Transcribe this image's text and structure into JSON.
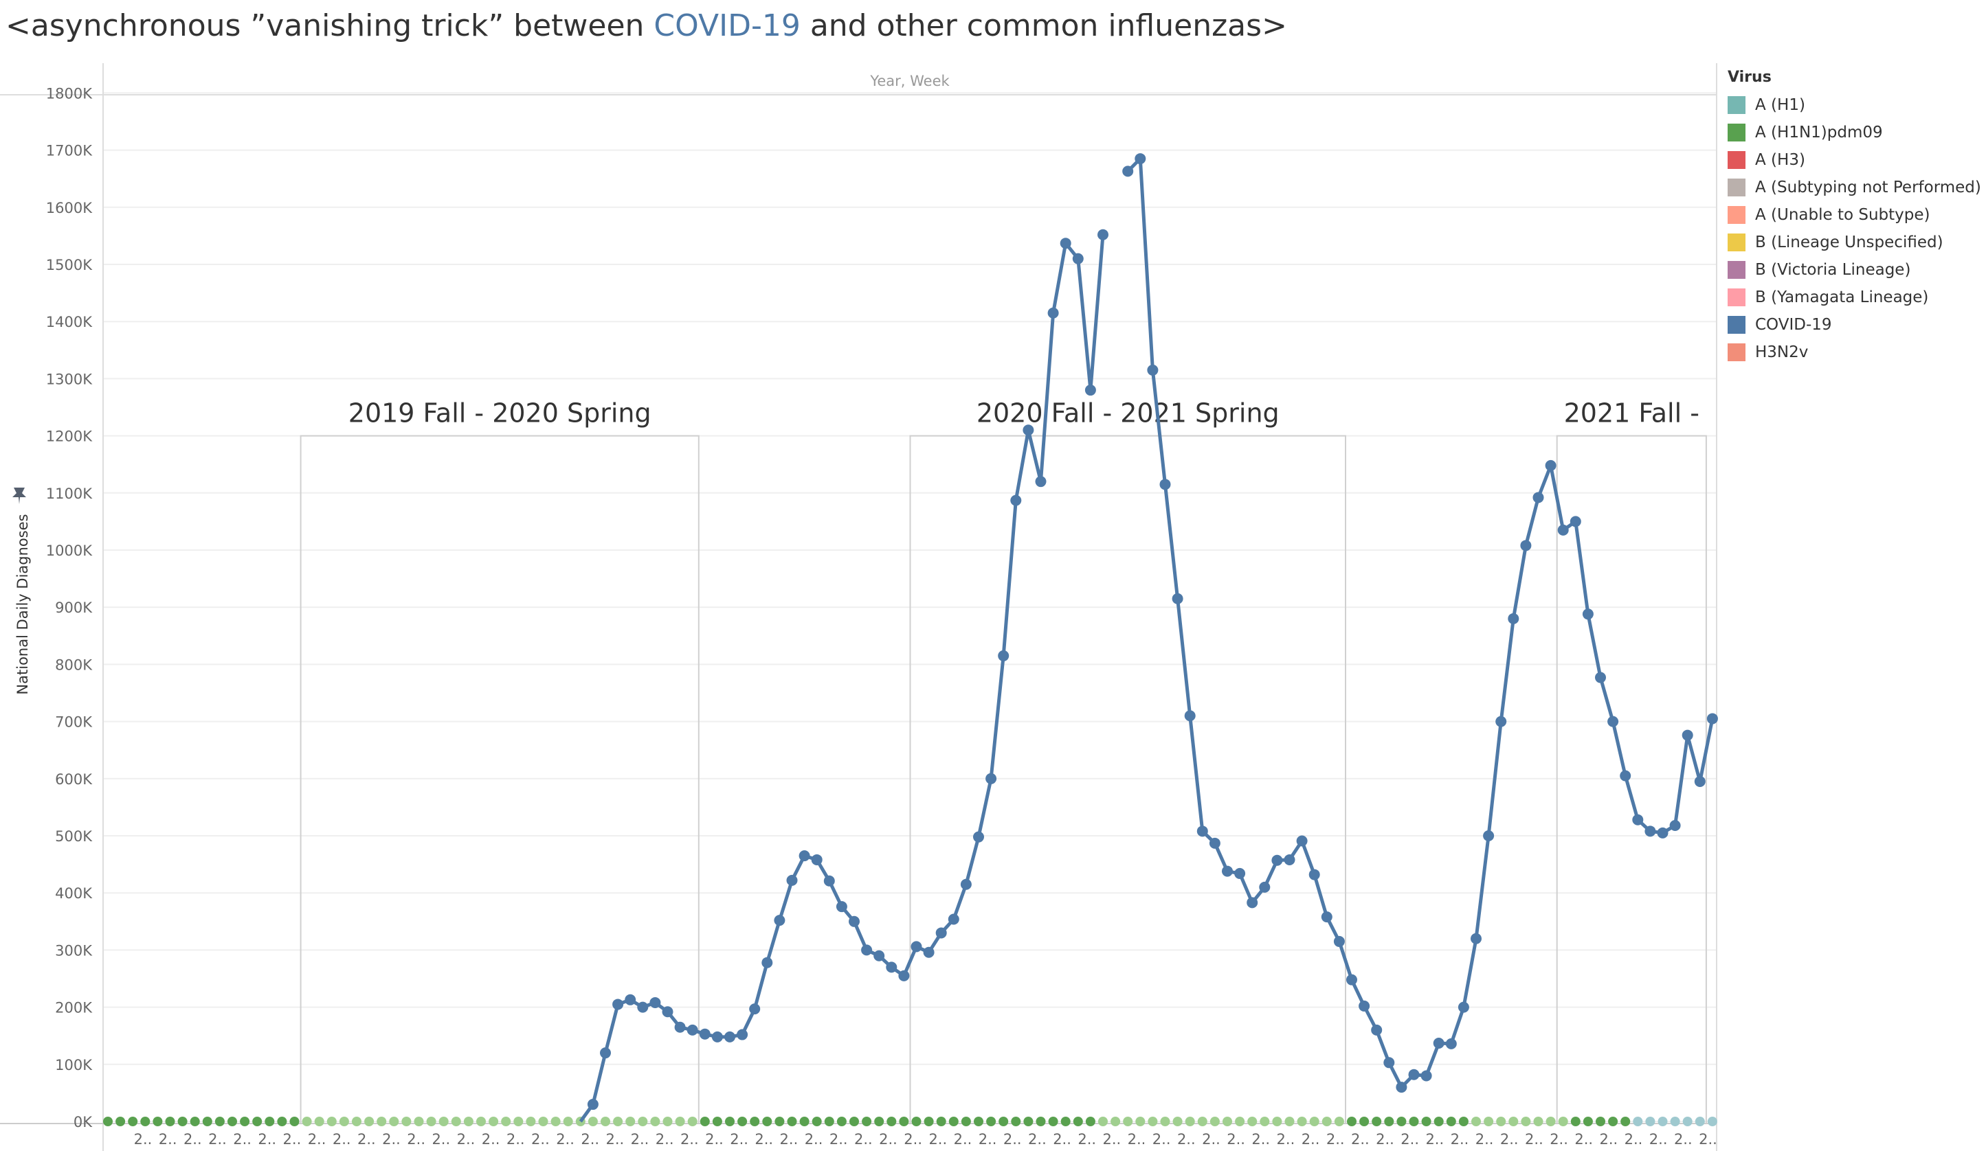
{
  "title": {
    "prefix": "<asynchronous ”vanishing trick” between ",
    "highlight": "COVID-19",
    "suffix": " and other common influenzas>"
  },
  "colors": {
    "covid": "#4e79a7",
    "flu_green": "#59a14f",
    "flu_light_green": "#a0cf8f",
    "flu_teal": "#9fc9cf",
    "grid": "#efefef",
    "box": "#d0d0d0"
  },
  "legend": {
    "title": "Virus",
    "items": [
      {
        "label": "A (H1)",
        "color": "#76b7b2"
      },
      {
        "label": "A (H1N1)pdm09",
        "color": "#59a14f"
      },
      {
        "label": "A (H3)",
        "color": "#e15759"
      },
      {
        "label": "A (Subtyping not Performed)",
        "color": "#bab0ac"
      },
      {
        "label": "A (Unable to Subtype)",
        "color": "#ff9d86"
      },
      {
        "label": "B (Lineage Unspecified)",
        "color": "#edc948"
      },
      {
        "label": "B (Victoria Lineage)",
        "color": "#b07aa1"
      },
      {
        "label": "B (Yamagata Lineage)",
        "color": "#ff9da7"
      },
      {
        "label": "COVID-19",
        "color": "#4e79a7"
      },
      {
        "label": "H3N2v",
        "color": "#f28e79"
      }
    ]
  },
  "chart_data": {
    "type": "line",
    "top_label": "Year, Week",
    "ylabel": "National Daily Diagnoses",
    "ylim": [
      0,
      1800000
    ],
    "y_ticks": [
      0,
      100000,
      200000,
      300000,
      400000,
      500000,
      600000,
      700000,
      800000,
      900000,
      1000000,
      1100000,
      1200000,
      1300000,
      1400000,
      1500000,
      1600000,
      1700000,
      1800000
    ],
    "y_tick_labels": [
      "0K",
      "100K",
      "200K",
      "300K",
      "400K",
      "500K",
      "600K",
      "700K",
      "800K",
      "900K",
      "1000K",
      "1100K",
      "1200K",
      "1300K",
      "1400K",
      "1500K",
      "1600K",
      "1700K",
      "1800K"
    ],
    "x_tick_label": "2..",
    "x_tick_count": 65,
    "week_count": 131,
    "grid": true,
    "legend_position": "right",
    "annotations": [
      {
        "text": "2019 Fall - 2020 Spring",
        "week_start": 16,
        "week_end": 48,
        "level": 1200000
      },
      {
        "text": "2020 Fall - 2021 Spring",
        "week_start": 65,
        "week_end": 100,
        "level": 1200000
      },
      {
        "text": "2021 Fall -",
        "week_start": 117,
        "week_end": 129,
        "level": 1200000
      }
    ],
    "series": [
      {
        "name": "COVID-19",
        "color": "#4e79a7",
        "start_week": 38,
        "values": [
          0,
          30000,
          120000,
          205000,
          213000,
          200000,
          208000,
          192000,
          165000,
          160000,
          153000,
          148000,
          148000,
          152000,
          197000,
          278000,
          352000,
          422000,
          465000,
          458000,
          421000,
          376000,
          350000,
          300000,
          290000,
          270000,
          255000,
          306000,
          296000,
          330000,
          354000,
          415000,
          498000,
          600000,
          815000,
          1087000,
          1210000,
          1120000,
          1415000,
          1537000,
          1510000,
          1280000,
          1552000,
          null,
          1663000,
          1685000,
          1315000,
          1115000,
          915000,
          710000,
          508000,
          487000,
          438000,
          434000,
          383000,
          410000,
          457000,
          458000,
          491000,
          432000,
          358000,
          315000,
          248000,
          202000,
          160000,
          103000,
          60000,
          82000,
          80000,
          137000,
          136000,
          200000,
          320000,
          500000,
          700000,
          880000,
          1008000,
          1092000,
          1148000,
          1035000,
          1050000,
          888000,
          777000,
          700000,
          605000,
          528000,
          508000,
          505000,
          518000,
          676000,
          595000,
          705000
        ]
      },
      {
        "name": "A (H1N1)pdm09",
        "color": "#59a14f",
        "values_note": "near-zero across all weeks",
        "value": 0
      }
    ]
  }
}
